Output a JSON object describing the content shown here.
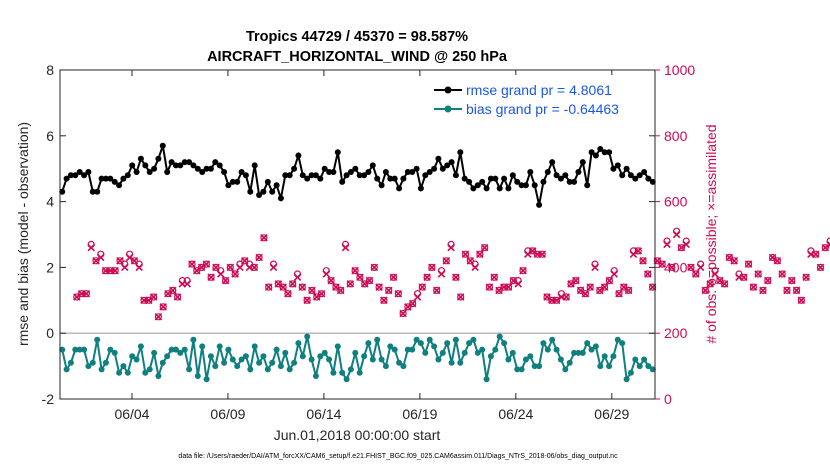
{
  "chart_data": {
    "type": "line",
    "title": "Tropics 44729 / 45370 = 98.587%",
    "subtitle": "AIRCRAFT_HORIZONTAL_WIND @ 250 hPa",
    "xlabel": "Jun.01,2018 00:00:00 start",
    "ylabel_left": "rmse and bias (model - observation)",
    "ylabel_right": "# of obs: o=possible; ×=assimilated",
    "footer": "data file: /Users/raeder/DAI/ATM_forcXX/CAM6_setup/f.e21.FHIST_BGC.f09_025.CAM6assim.011/Diags_NTrS_2018-06/obs_diag_output.nc",
    "x_range_days": [
      0.25,
      31.25
    ],
    "y_left_range": [
      -2,
      8
    ],
    "y_right_range": [
      0,
      1000
    ],
    "y_left_ticks": [
      "-2",
      "0",
      "2",
      "4",
      "6",
      "8"
    ],
    "y_right_ticks": [
      "0",
      "200",
      "400",
      "600",
      "800",
      "1000"
    ],
    "x_ticks": [
      {
        "day": 4,
        "label": "06/04"
      },
      {
        "day": 9,
        "label": "06/09"
      },
      {
        "day": 14,
        "label": "06/14"
      },
      {
        "day": 19,
        "label": "06/19"
      },
      {
        "day": 24,
        "label": "06/24"
      },
      {
        "day": 29,
        "label": "06/29"
      }
    ],
    "legend": [
      {
        "label": "rmse grand pr = 4.8061",
        "color": "#000000",
        "marker": "circle"
      },
      {
        "label": "bias grand pr = -0.64463",
        "color": "#0f7f7f",
        "marker": "circle"
      }
    ],
    "colors": {
      "rmse": "#000000",
      "bias": "#0f7f7f",
      "obs": "#cc0b55",
      "zero_line": "#bbbbbb"
    },
    "series": [
      {
        "name": "rmse",
        "values": [
          4.3,
          4.7,
          4.8,
          4.8,
          4.9,
          4.8,
          4.9,
          4.3,
          4.3,
          4.7,
          4.7,
          4.7,
          4.6,
          4.5,
          4.7,
          4.8,
          5.1,
          4.9,
          5.3,
          5.1,
          4.9,
          5.0,
          5.3,
          5.7,
          4.9,
          5.2,
          5.1,
          5.1,
          5.2,
          5.2,
          5.1,
          5.0,
          4.9,
          5.0,
          5.0,
          5.2,
          5.1,
          4.9,
          4.5,
          4.6,
          4.6,
          4.9,
          4.8,
          4.3,
          5.1,
          4.2,
          4.3,
          4.6,
          4.3,
          4.5,
          4.1,
          4.8,
          4.8,
          5.0,
          5.4,
          4.8,
          4.7,
          4.8,
          4.8,
          4.7,
          5.0,
          4.9,
          4.9,
          5.5,
          4.6,
          4.8,
          4.9,
          5.0,
          4.8,
          4.8,
          4.9,
          5.1,
          4.7,
          4.5,
          4.9,
          4.7,
          4.7,
          4.4,
          4.7,
          4.9,
          4.9,
          5.0,
          4.4,
          4.8,
          4.9,
          5.0,
          5.3,
          5.0,
          5.1,
          5.2,
          4.8,
          5.5,
          4.7,
          4.6,
          4.4,
          4.5,
          4.6,
          4.4,
          4.7,
          4.7,
          4.4,
          4.7,
          4.4,
          4.8,
          4.6,
          4.5,
          4.5,
          4.9,
          4.5,
          3.9,
          4.6,
          4.9,
          5.2,
          4.8,
          4.7,
          4.8,
          4.6,
          4.6,
          4.9,
          5.2,
          4.5,
          5.5,
          5.4,
          5.6,
          5.5,
          5.5,
          5.0,
          5.1,
          4.8,
          5.0,
          4.8,
          4.7,
          4.8,
          4.9,
          4.7,
          4.6
        ]
      },
      {
        "name": "bias",
        "values": [
          -0.5,
          -1.1,
          -0.9,
          -0.5,
          -0.5,
          -0.5,
          -1.0,
          -0.9,
          -0.2,
          -1.1,
          -0.9,
          -0.5,
          -0.6,
          -1.2,
          -1.0,
          -1.2,
          -0.7,
          -0.8,
          -0.4,
          -1.2,
          -1.1,
          -0.6,
          -1.3,
          -0.9,
          -0.7,
          -0.5,
          -0.5,
          -0.6,
          -0.5,
          -1.1,
          -0.2,
          -1.3,
          -0.4,
          -1.4,
          -0.7,
          -1.0,
          -0.4,
          -0.9,
          -0.5,
          -0.8,
          -1.0,
          -0.8,
          -0.7,
          -1.1,
          -0.4,
          -0.9,
          -0.7,
          -1.1,
          -0.9,
          -0.5,
          -1.0,
          -0.6,
          -1.1,
          -0.9,
          -0.3,
          -0.7,
          -0.1,
          -0.8,
          -1.3,
          -0.7,
          -0.6,
          -0.8,
          -1.2,
          -0.4,
          -1.2,
          -1.4,
          -1.1,
          -0.6,
          -1.2,
          -0.7,
          -0.3,
          -0.8,
          -0.2,
          -0.8,
          -1.0,
          -0.4,
          -0.5,
          -0.9,
          -1.0,
          -0.5,
          -0.5,
          -0.2,
          -0.3,
          -0.6,
          -0.2,
          -0.4,
          -0.8,
          -0.6,
          -0.3,
          -0.9,
          -0.2,
          -0.9,
          -0.6,
          -0.3,
          -0.2,
          -0.6,
          -0.5,
          -1.4,
          -0.7,
          -0.5,
          -0.1,
          -0.3,
          -0.8,
          -0.6,
          -1.1,
          -1.1,
          -0.8,
          -0.7,
          -1.0,
          -1.0,
          -0.3,
          -0.5,
          -0.2,
          -0.5,
          -0.8,
          -1.1,
          -0.9,
          -0.6,
          -0.6,
          -0.6,
          -0.3,
          -0.5,
          -0.4,
          -1.0,
          -0.7,
          -1.0,
          -0.7,
          -0.2,
          -0.3,
          -1.4,
          -1.2,
          -0.8,
          -1.0,
          -0.8,
          -1.0,
          -1.1
        ]
      },
      {
        "name": "obs_possible",
        "values": [
          310,
          320,
          320,
          470,
          420,
          440,
          390,
          390,
          390,
          420,
          410,
          440,
          420,
          410,
          300,
          300,
          310,
          250,
          280,
          320,
          330,
          310,
          360,
          360,
          410,
          390,
          400,
          410,
          370,
          400,
          390,
          360,
          400,
          380,
          410,
          420,
          410,
          400,
          430,
          490,
          340,
          410,
          350,
          340,
          320,
          350,
          380,
          340,
          300,
          330,
          310,
          320,
          390,
          360,
          340,
          330,
          470,
          350,
          390,
          370,
          350,
          360,
          400,
          340,
          300,
          330,
          370,
          320,
          260,
          280,
          290,
          320,
          340,
          370,
          400,
          330,
          390,
          420,
          470,
          370,
          310,
          440,
          420,
          410,
          440,
          460,
          340,
          370,
          330,
          340,
          340,
          360,
          360,
          390,
          450,
          450,
          440,
          440,
          310,
          300,
          300,
          320,
          310,
          350,
          360,
          330,
          320,
          340,
          410,
          330,
          340,
          360,
          390,
          320,
          340,
          330,
          450,
          450,
          420,
          380,
          340,
          420,
          410,
          480,
          400,
          510,
          460,
          480,
          400,
          380,
          410,
          330,
          350,
          390,
          360,
          350,
          430,
          420,
          380,
          370,
          410,
          340,
          380,
          330,
          360,
          430,
          420,
          380,
          330,
          360,
          330,
          300,
          370,
          450,
          440,
          400,
          460,
          480,
          380,
          340,
          330,
          300,
          320,
          330,
          450,
          490,
          450,
          510,
          410,
          350,
          380,
          420,
          420,
          320,
          360,
          440,
          430,
          430,
          360,
          380,
          360,
          330,
          390,
          340,
          330,
          300,
          380,
          460,
          460,
          510,
          520,
          500,
          480,
          500,
          490,
          520,
          0
        ]
      },
      {
        "name": "obs_assimilated",
        "values": [
          310,
          320,
          320,
          460,
          420,
          430,
          390,
          390,
          390,
          420,
          400,
          430,
          420,
          400,
          300,
          300,
          310,
          250,
          280,
          320,
          330,
          310,
          350,
          350,
          410,
          390,
          400,
          410,
          370,
          400,
          380,
          360,
          400,
          380,
          400,
          420,
          400,
          400,
          430,
          490,
          340,
          400,
          350,
          340,
          320,
          350,
          370,
          340,
          300,
          330,
          310,
          320,
          380,
          360,
          340,
          330,
          460,
          350,
          390,
          370,
          350,
          360,
          400,
          340,
          300,
          330,
          370,
          320,
          260,
          280,
          290,
          310,
          340,
          370,
          400,
          330,
          380,
          420,
          460,
          370,
          310,
          440,
          420,
          400,
          440,
          460,
          340,
          370,
          330,
          340,
          340,
          360,
          350,
          390,
          440,
          450,
          440,
          440,
          310,
          300,
          300,
          310,
          310,
          350,
          360,
          330,
          320,
          340,
          400,
          330,
          340,
          360,
          380,
          320,
          340,
          330,
          440,
          450,
          420,
          380,
          340,
          420,
          410,
          470,
          400,
          500,
          460,
          470,
          400,
          380,
          400,
          330,
          350,
          380,
          360,
          350,
          430,
          420,
          370,
          370,
          410,
          340,
          380,
          330,
          360,
          430,
          420,
          380,
          330,
          360,
          330,
          300,
          370,
          440,
          440,
          400,
          460,
          470,
          380,
          340,
          330,
          300,
          320,
          330,
          450,
          480,
          450,
          500,
          400,
          350,
          380,
          420,
          420,
          320,
          360,
          440,
          430,
          430,
          360,
          380,
          360,
          330,
          390,
          340,
          330,
          300,
          370,
          460,
          460,
          500,
          520,
          500,
          480,
          500,
          490,
          520,
          0
        ]
      }
    ]
  }
}
